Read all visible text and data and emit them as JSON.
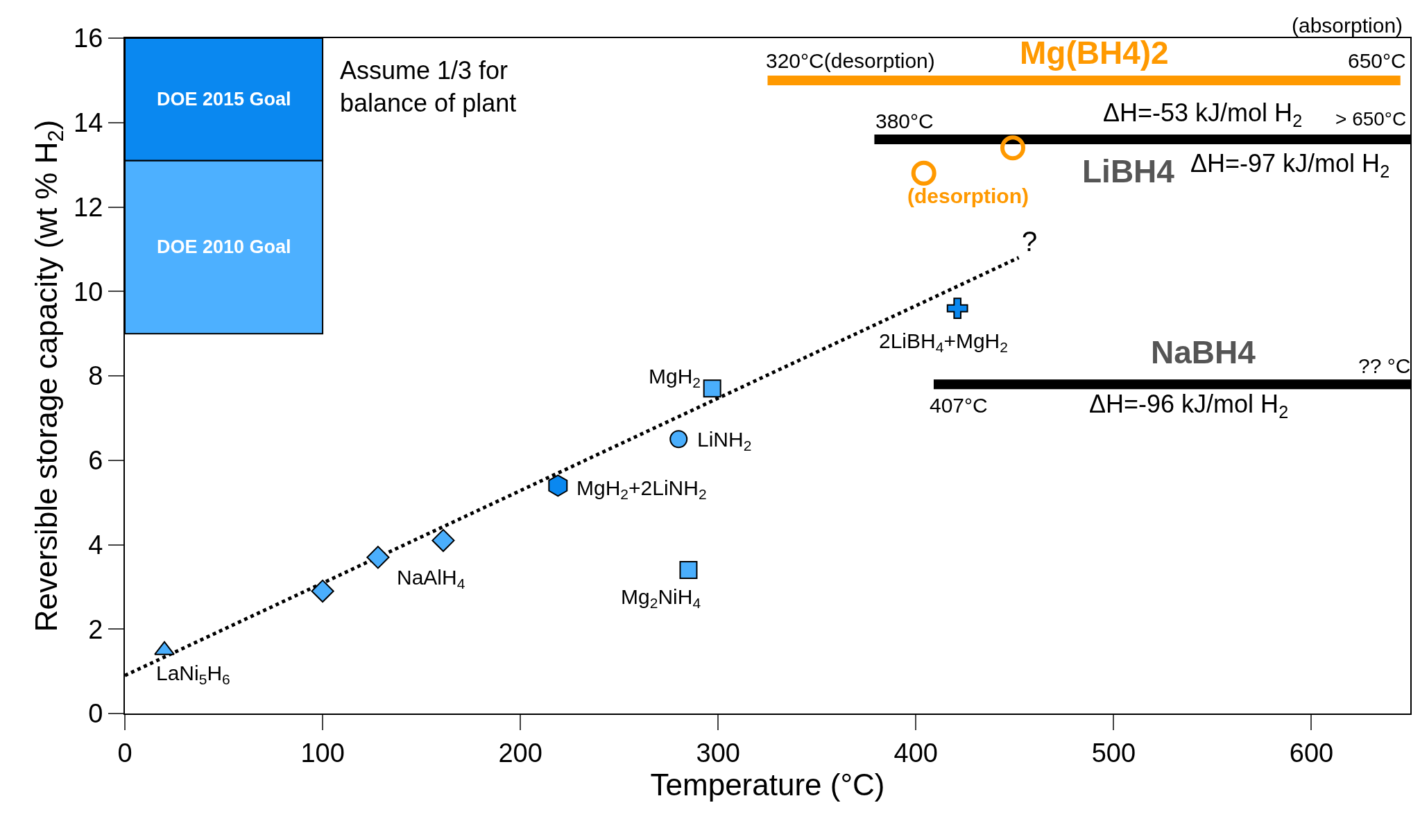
{
  "chart_data": {
    "type": "scatter",
    "xlabel": "Temperature (°C)",
    "ylabel": "Reversible storage capacity (wt % H$_{2}$)",
    "xlim": [
      0,
      650
    ],
    "ylim": [
      0,
      16
    ],
    "xticks": [
      0,
      100,
      200,
      300,
      400,
      500,
      600
    ],
    "yticks": [
      0,
      2,
      4,
      6,
      8,
      10,
      12,
      14,
      16
    ],
    "series": [
      {
        "name": "DOE 2010 Goal",
        "type": "bar",
        "color": "#4db0ff",
        "x": [
          50
        ],
        "base": [
          9
        ],
        "values": [
          4.1
        ]
      },
      {
        "name": "DOE 2015 Goal",
        "type": "bar",
        "color": "#0a88f0",
        "x": [
          50
        ],
        "base": [
          13.1
        ],
        "values": [
          2.9
        ]
      },
      {
        "type": "line",
        "line_style": "dotted",
        "marker": "none",
        "color": "#000000",
        "x": [
          0,
          452
        ],
        "values": [
          0.9,
          10.8
        ]
      },
      {
        "name": "LaNi$_{5}$H$_{6}$",
        "marker": "triangle",
        "color": "#4aaefc",
        "x": [
          20
        ],
        "values": [
          1.5
        ]
      },
      {
        "name": "NaAlH$_{4}$",
        "marker": "diamond",
        "color": "#4aaefc",
        "x": [
          100,
          128,
          161
        ],
        "values": [
          2.9,
          3.7,
          4.1
        ]
      },
      {
        "name": "MgH$_{2}$+2LiNH$_{2}$",
        "color": "#0a88f0",
        "x": [
          219
        ],
        "values": [
          5.4
        ]
      },
      {
        "name": "LiNH$_{2}$",
        "marker": "circle",
        "color": "#4aaefc",
        "x": [
          280
        ],
        "values": [
          6.5
        ]
      },
      {
        "name": "MgH$_{2}$",
        "marker": "square",
        "color": "#4aaefc",
        "x": [
          297
        ],
        "values": [
          7.7
        ]
      },
      {
        "name": "Mg$_{2}$NiH$_{4}$",
        "marker": "square",
        "color": "#4aaefc",
        "x": [
          285
        ],
        "values": [
          3.4
        ]
      },
      {
        "name": "2LiBH$_{4}$+MgH$_{2}$",
        "marker": "cross",
        "color": "#0a88f0",
        "x": [
          421
        ],
        "values": [
          9.6
        ]
      },
      {
        "name": "(desorption)",
        "marker": "circle-open",
        "color": "#ff9900",
        "x": [
          404,
          449
        ],
        "values": [
          12.8,
          13.4
        ]
      },
      {
        "name": "Mg(BH4)2",
        "type": "line",
        "marker": "none",
        "color": "#ff9900",
        "x": [
          325,
          645
        ],
        "values": [
          15,
          15
        ]
      },
      {
        "name": "LiBH4",
        "type": "line",
        "marker": "none",
        "color": "#000000",
        "x": [
          379,
          650
        ],
        "values": [
          13.6,
          13.6
        ]
      },
      {
        "name": "NaBH4",
        "type": "line",
        "marker": "none",
        "color": "#000000",
        "x": [
          409,
          650
        ],
        "values": [
          7.8,
          7.8
        ]
      }
    ],
    "annotations": [
      "Assume 1/3 for\nbalance of plant",
      {
        "text": "320°C(desorption)",
        "x": 325,
        "y": 15
      },
      {
        "text": "650°C",
        "x": 645,
        "y": 15
      },
      "ΔH=-53 kJ/mol H$_{2}$",
      {
        "text": "380°C",
        "x": 379,
        "y": 13.6
      },
      {
        "text": "> 650°C",
        "x": 650,
        "y": 13.6
      },
      "ΔH=-97 kJ/mol H$_{2}$",
      {
        "text": "?",
        "x": 452,
        "y": 10.8
      },
      {
        "text": "407°C",
        "x": 409,
        "y": 7.8
      },
      {
        "text": "?? °C",
        "x": 650,
        "y": 7.8
      },
      "ΔH=-96 kJ/mol H$_{2}$",
      "(absorption)"
    ]
  }
}
